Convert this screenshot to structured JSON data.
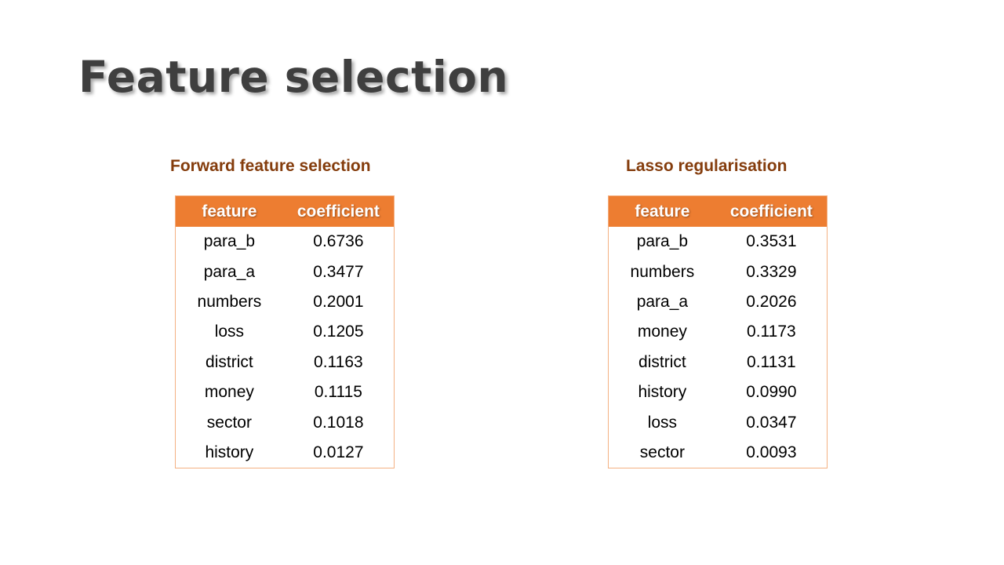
{
  "title": "Feature selection",
  "colors": {
    "header_fill": "#ed7d31",
    "heading_text": "#843c0c",
    "table_border": "#f4b183",
    "title_text": "#3f3f3f"
  },
  "left_panel": {
    "heading": "Forward feature selection",
    "columns": [
      "feature",
      "coefficient"
    ],
    "rows": [
      [
        "para_b",
        "0.6736"
      ],
      [
        "para_a",
        "0.3477"
      ],
      [
        "numbers",
        "0.2001"
      ],
      [
        "loss",
        "0.1205"
      ],
      [
        "district",
        "0.1163"
      ],
      [
        "money",
        "0.1115"
      ],
      [
        "sector",
        "0.1018"
      ],
      [
        "history",
        "0.0127"
      ]
    ]
  },
  "right_panel": {
    "heading": "Lasso regularisation",
    "columns": [
      "feature",
      "coefficient"
    ],
    "rows": [
      [
        "para_b",
        "0.3531"
      ],
      [
        "numbers",
        "0.3329"
      ],
      [
        "para_a",
        "0.2026"
      ],
      [
        "money",
        "0.1173"
      ],
      [
        "district",
        "0.1131"
      ],
      [
        "history",
        "0.0990"
      ],
      [
        "loss",
        "0.0347"
      ],
      [
        "sector",
        "0.0093"
      ]
    ]
  }
}
